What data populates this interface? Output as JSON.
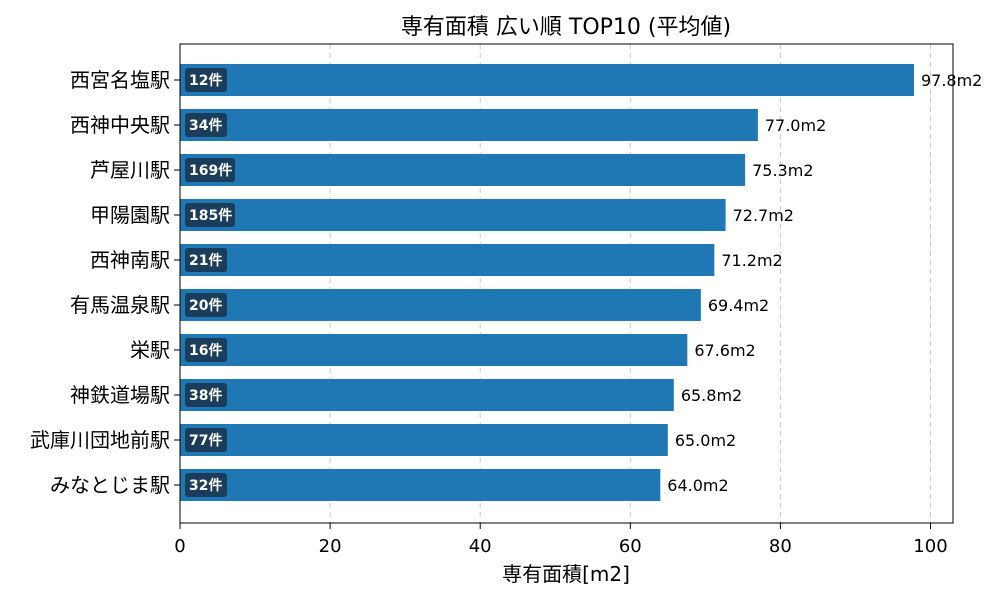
{
  "chart_data": {
    "type": "bar",
    "orientation": "horizontal",
    "title": "専有面積 広い順 TOP10 (平均値)",
    "xlabel": "専有面積[m2]",
    "ylabel": "",
    "xlim": [
      0,
      103
    ],
    "xticks": [
      0,
      20,
      40,
      60,
      80,
      100
    ],
    "grid": "x-dashed",
    "bar_color": "#1f77b4",
    "badge_color": "#1b3d5c",
    "categories": [
      "西宮名塩駅",
      "西神中央駅",
      "芦屋川駅",
      "甲陽園駅",
      "西神南駅",
      "有馬温泉駅",
      "栄駅",
      "神鉄道場駅",
      "武庫川団地前駅",
      "みなとじま駅"
    ],
    "values": [
      97.8,
      77.0,
      75.3,
      72.7,
      71.2,
      69.4,
      67.6,
      65.8,
      65.0,
      64.0
    ],
    "value_labels": [
      "97.8m2",
      "77.0m2",
      "75.3m2",
      "72.7m2",
      "71.2m2",
      "69.4m2",
      "67.6m2",
      "65.8m2",
      "65.0m2",
      "64.0m2"
    ],
    "counts": [
      "12件",
      "34件",
      "169件",
      "185件",
      "21件",
      "20件",
      "16件",
      "38件",
      "77件",
      "32件"
    ]
  }
}
